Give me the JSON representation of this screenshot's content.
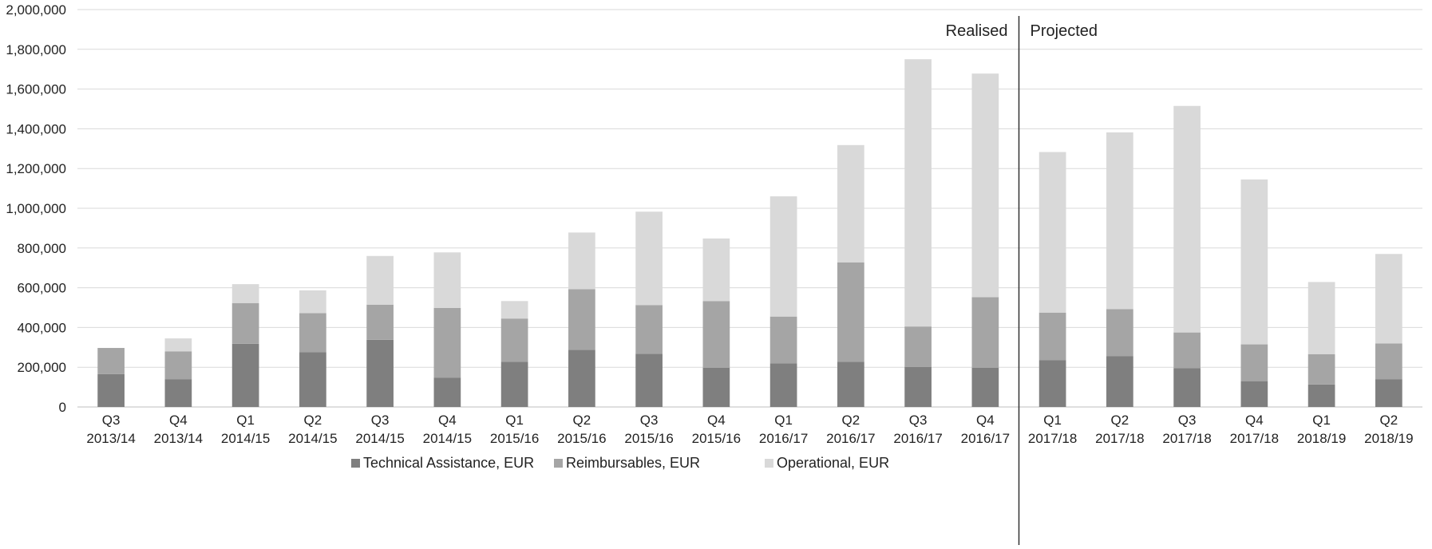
{
  "chart_data": {
    "type": "bar",
    "stacked": true,
    "categories": [
      [
        "Q3",
        "2013/14"
      ],
      [
        "Q4",
        "2013/14"
      ],
      [
        "Q1",
        "2014/15"
      ],
      [
        "Q2",
        "2014/15"
      ],
      [
        "Q3",
        "2014/15"
      ],
      [
        "Q4",
        "2014/15"
      ],
      [
        "Q1",
        "2015/16"
      ],
      [
        "Q2",
        "2015/16"
      ],
      [
        "Q3",
        "2015/16"
      ],
      [
        "Q4",
        "2015/16"
      ],
      [
        "Q1",
        "2016/17"
      ],
      [
        "Q2",
        "2016/17"
      ],
      [
        "Q3",
        "2016/17"
      ],
      [
        "Q4",
        "2016/17"
      ],
      [
        "Q1",
        "2017/18"
      ],
      [
        "Q2",
        "2017/18"
      ],
      [
        "Q3",
        "2017/18"
      ],
      [
        "Q4",
        "2017/18"
      ],
      [
        "Q1",
        "2018/19"
      ],
      [
        "Q2",
        "2018/19"
      ]
    ],
    "series": [
      {
        "name": "Technical Assistance, EUR",
        "color": "#7f7f7f",
        "values": [
          165000,
          140000,
          318000,
          275000,
          338000,
          148000,
          228000,
          288000,
          268000,
          198000,
          220000,
          228000,
          202000,
          198000,
          235000,
          255000,
          195000,
          130000,
          113000,
          140000
        ]
      },
      {
        "name": "Reimbursables, EUR",
        "color": "#a5a5a5",
        "values": [
          132000,
          140000,
          205000,
          197000,
          177000,
          350000,
          217000,
          305000,
          245000,
          335000,
          235000,
          500000,
          203000,
          355000,
          240000,
          237000,
          180000,
          185000,
          153000,
          180000
        ]
      },
      {
        "name": "Operational, EUR",
        "color": "#d9d9d9",
        "values": [
          0,
          65000,
          95000,
          115000,
          245000,
          280000,
          88000,
          285000,
          470000,
          315000,
          605000,
          590000,
          1345000,
          1125000,
          808000,
          890000,
          1140000,
          830000,
          363000,
          450000
        ]
      }
    ],
    "ylim": [
      0,
      2000000
    ],
    "yticks": [
      "0",
      "200,000",
      "400,000",
      "600,000",
      "800,000",
      "1,000,000",
      "1,200,000",
      "1,400,000",
      "1,600,000",
      "1,800,000",
      "2,000,000"
    ],
    "grid": true,
    "legend_position": "bottom",
    "annotations": {
      "left": "Realised",
      "right": "Projected"
    },
    "divider_after_category_index": 13
  }
}
